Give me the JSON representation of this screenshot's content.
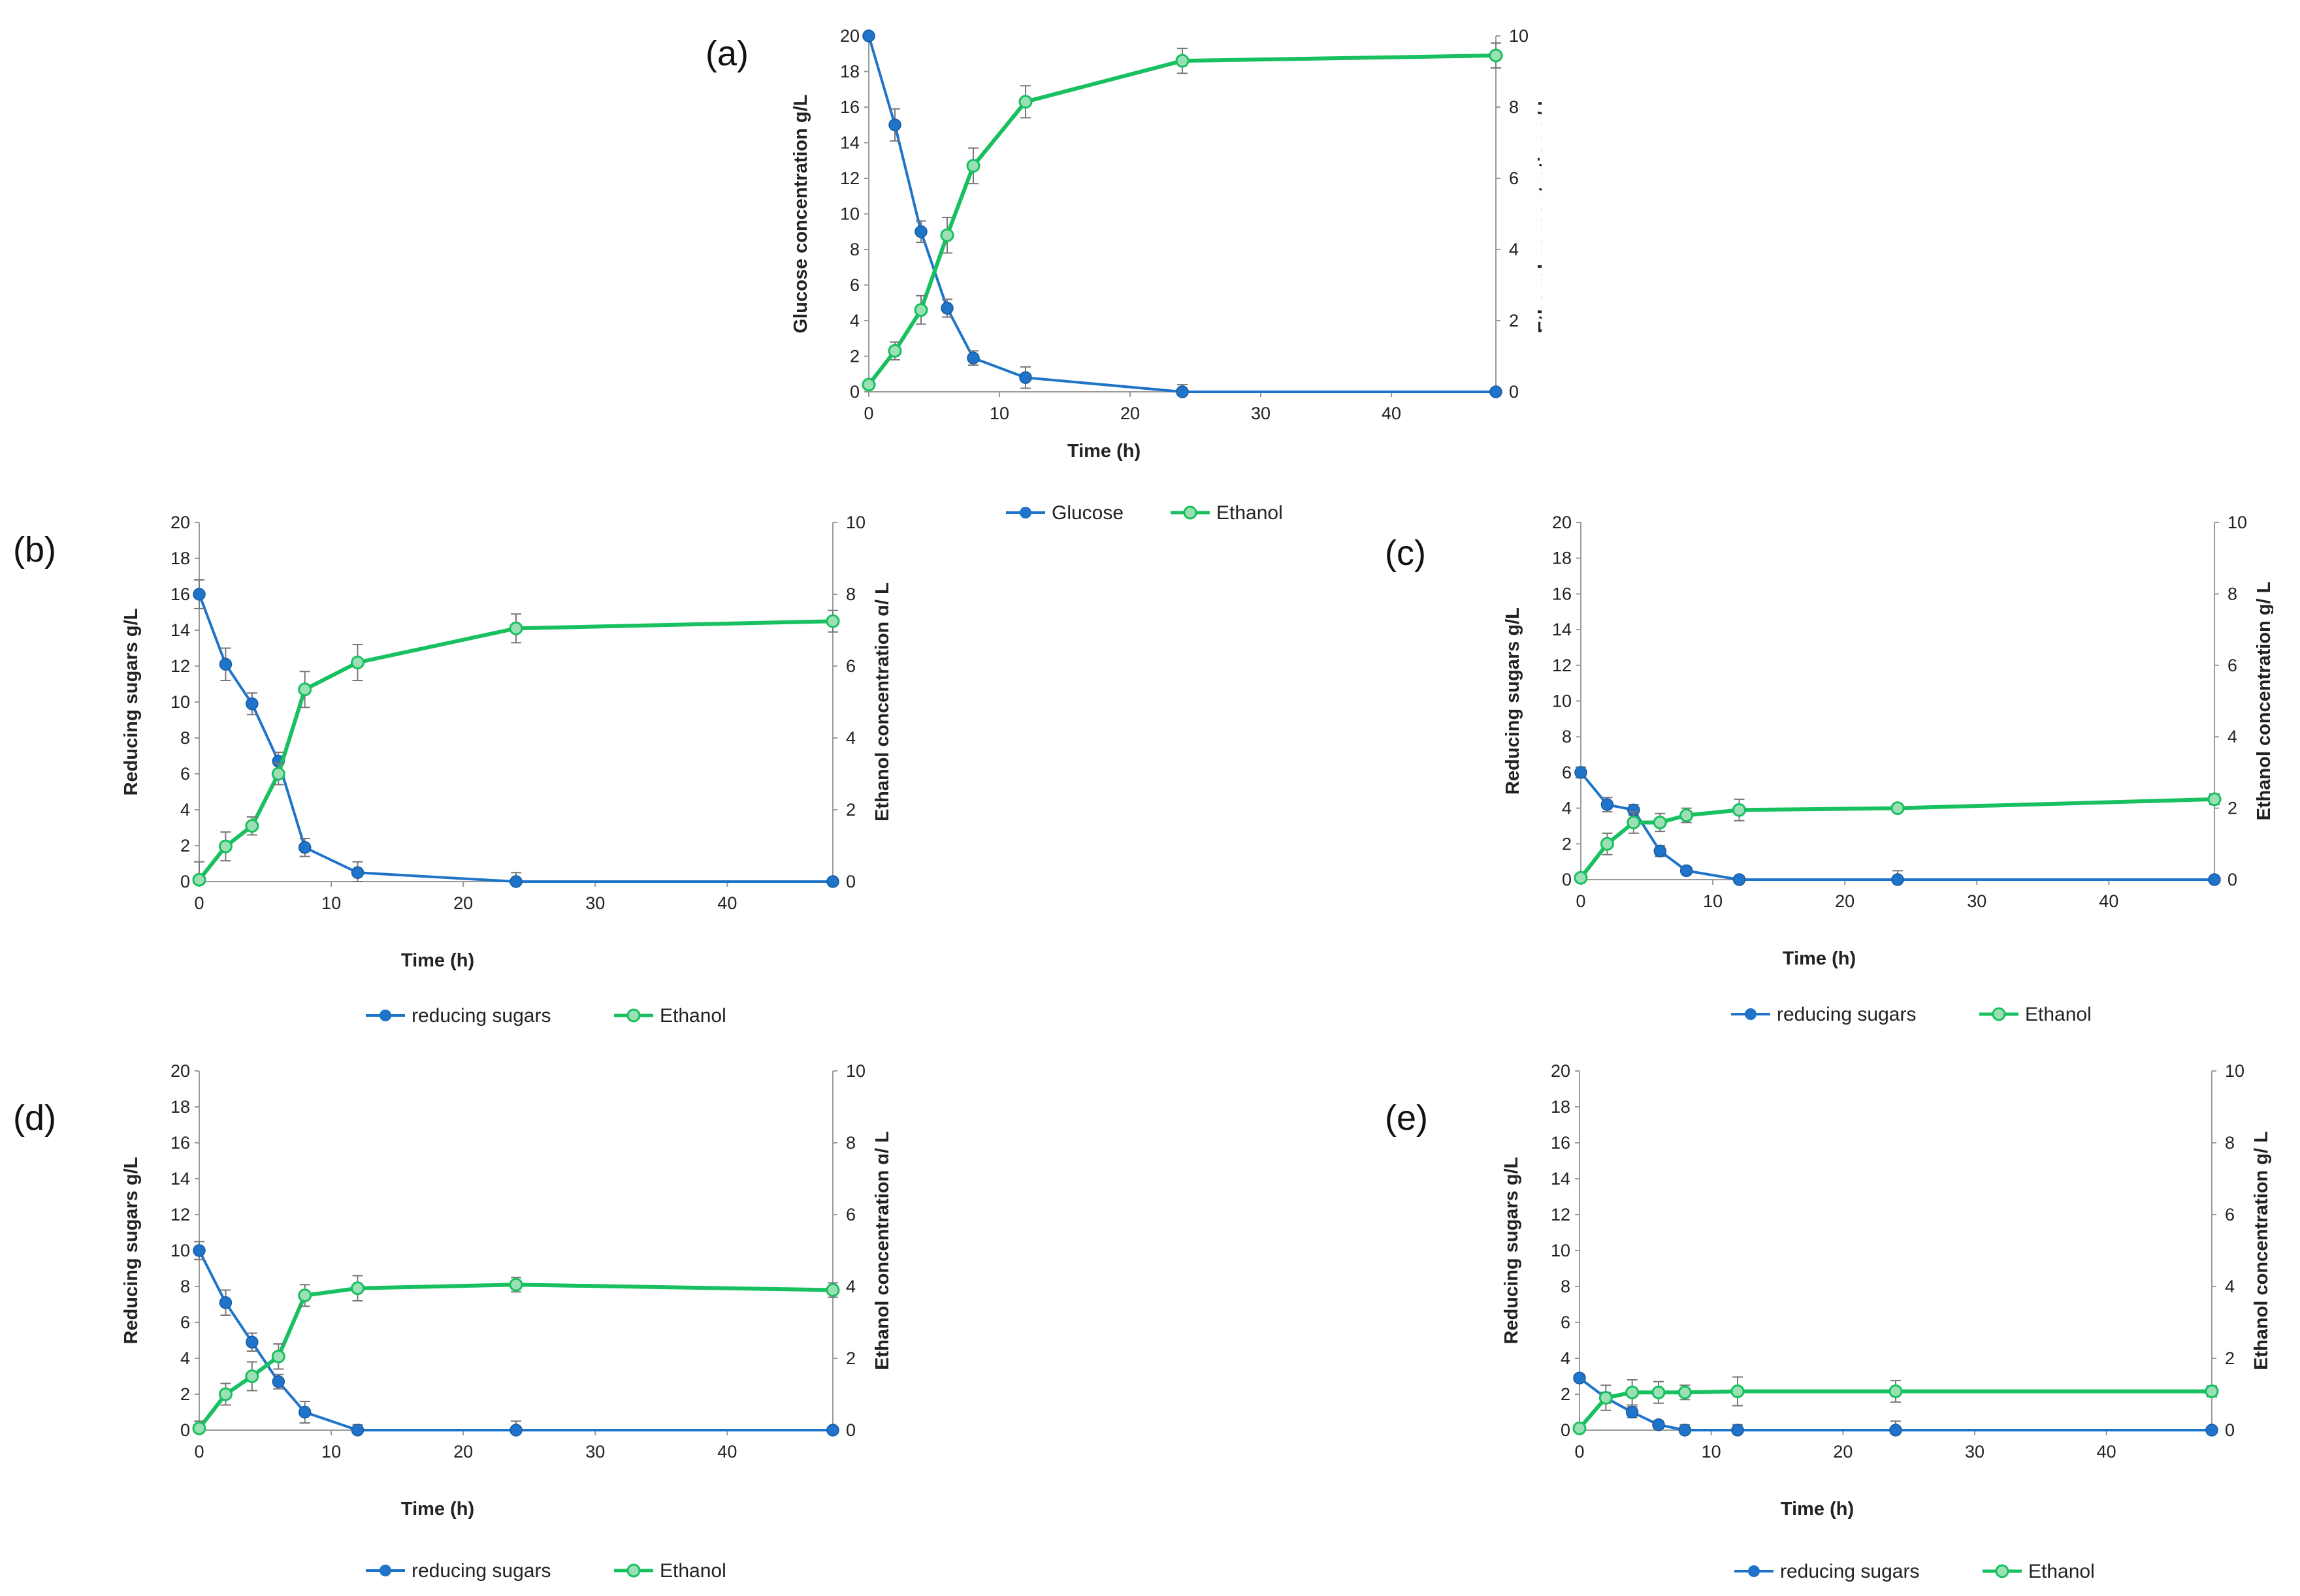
{
  "colors": {
    "sugar": "#1f74c9",
    "ethanol": "#18c060",
    "ethanol_fill": "#9be0b4",
    "error": "#777777",
    "axis": "#9a9a9a"
  },
  "chart_data": [
    {
      "type": "line",
      "panel": "(a)",
      "title": "",
      "xlabel": "Time (h)",
      "ylabel_left": "Glucose concentration g/L",
      "ylabel_right": "Ethanol concentration g/ L",
      "xlim": [
        0,
        48
      ],
      "xticks": [
        0,
        10,
        20,
        30,
        40
      ],
      "ylim_left": [
        0,
        20
      ],
      "yticks_left": [
        0,
        2,
        4,
        6,
        8,
        10,
        12,
        14,
        16,
        18,
        20
      ],
      "ylim_right": [
        0,
        10
      ],
      "yticks_right": [
        0,
        2,
        4,
        6,
        8,
        10
      ],
      "x": [
        0,
        2,
        4,
        6,
        8,
        12,
        24,
        48
      ],
      "series": [
        {
          "name": "Glucose",
          "axis": "left",
          "values": [
            20.0,
            15.0,
            9.0,
            4.7,
            1.9,
            0.8,
            0.0,
            0.0
          ],
          "errors": [
            0.0,
            0.9,
            0.6,
            0.5,
            0.4,
            0.6,
            0.4,
            0.0
          ]
        },
        {
          "name": "Ethanol",
          "axis": "right",
          "values": [
            0.2,
            1.15,
            2.3,
            4.4,
            6.35,
            8.15,
            9.3,
            9.45
          ],
          "errors": [
            0.1,
            0.25,
            0.4,
            0.5,
            0.5,
            0.45,
            0.35,
            0.35
          ]
        }
      ]
    },
    {
      "type": "line",
      "panel": "(b)",
      "title": "",
      "xlabel": "Time (h)",
      "ylabel_left": "Reducing sugars  g/L",
      "ylabel_right": "Ethanol concentration g/ L",
      "xlim": [
        0,
        48
      ],
      "xticks": [
        0,
        10,
        20,
        30,
        40
      ],
      "ylim_left": [
        0,
        20
      ],
      "yticks_left": [
        0,
        2,
        4,
        6,
        8,
        10,
        12,
        14,
        16,
        18,
        20
      ],
      "ylim_right": [
        0,
        10
      ],
      "yticks_right": [
        0,
        2,
        4,
        6,
        8,
        10
      ],
      "x": [
        0,
        2,
        4,
        6,
        8,
        12,
        24,
        48
      ],
      "series": [
        {
          "name": "reducing sugars",
          "axis": "left",
          "values": [
            16.0,
            12.1,
            9.9,
            6.7,
            1.9,
            0.5,
            0.0,
            0.0
          ],
          "errors": [
            0.8,
            0.9,
            0.6,
            0.5,
            0.5,
            0.6,
            0.5,
            0.0
          ]
        },
        {
          "name": "Ethanol",
          "axis": "right",
          "values": [
            0.05,
            0.98,
            1.55,
            3.0,
            5.35,
            6.1,
            7.05,
            7.25
          ],
          "errors": [
            0.5,
            0.4,
            0.25,
            0.3,
            0.5,
            0.5,
            0.4,
            0.3
          ]
        }
      ]
    },
    {
      "type": "line",
      "panel": "(c)",
      "title": "",
      "xlabel": "Time (h)",
      "ylabel_left": "Reducing sugars  g/L",
      "ylabel_right": "Ethanol concentration g/ L",
      "xlim": [
        0,
        48
      ],
      "xticks": [
        0,
        10,
        20,
        30,
        40
      ],
      "ylim_left": [
        0,
        20
      ],
      "yticks_left": [
        0,
        2,
        4,
        6,
        8,
        10,
        12,
        14,
        16,
        18,
        20
      ],
      "ylim_right": [
        0,
        10
      ],
      "yticks_right": [
        0,
        2,
        4,
        6,
        8,
        10
      ],
      "x": [
        0,
        2,
        4,
        6,
        8,
        12,
        24,
        48
      ],
      "series": [
        {
          "name": "reducing sugars",
          "axis": "left",
          "values": [
            6.0,
            4.2,
            3.9,
            1.6,
            0.5,
            0.0,
            0.0,
            0.0
          ],
          "errors": [
            0.3,
            0.4,
            0.3,
            0.3,
            0.2,
            0.2,
            0.5,
            0.0
          ]
        },
        {
          "name": "Ethanol",
          "axis": "right",
          "values": [
            0.05,
            1.0,
            1.6,
            1.6,
            1.8,
            1.95,
            2.0,
            2.25
          ],
          "errors": [
            0.1,
            0.3,
            0.3,
            0.25,
            0.2,
            0.3,
            0.1,
            0.15
          ]
        }
      ]
    },
    {
      "type": "line",
      "panel": "(d)",
      "title": "",
      "xlabel": "Time (h)",
      "ylabel_left": "Reducing sugars  g/L",
      "ylabel_right": "Ethanol concentration g/ L",
      "xlim": [
        0,
        48
      ],
      "xticks": [
        0,
        10,
        20,
        30,
        40
      ],
      "ylim_left": [
        0,
        20
      ],
      "yticks_left": [
        0,
        2,
        4,
        6,
        8,
        10,
        12,
        14,
        16,
        18,
        20
      ],
      "ylim_right": [
        0,
        10
      ],
      "yticks_right": [
        0,
        2,
        4,
        6,
        8,
        10
      ],
      "x": [
        0,
        2,
        4,
        6,
        8,
        12,
        24,
        48
      ],
      "series": [
        {
          "name": "reducing sugars",
          "axis": "left",
          "values": [
            10.0,
            7.1,
            4.9,
            2.7,
            1.0,
            0.0,
            0.0,
            0.0
          ],
          "errors": [
            0.5,
            0.7,
            0.5,
            0.4,
            0.6,
            0.3,
            0.5,
            0.0
          ]
        },
        {
          "name": "Ethanol",
          "axis": "right",
          "values": [
            0.05,
            1.0,
            1.5,
            2.05,
            3.75,
            3.95,
            4.05,
            3.9
          ],
          "errors": [
            0.2,
            0.3,
            0.4,
            0.35,
            0.3,
            0.35,
            0.2,
            0.2
          ]
        }
      ]
    },
    {
      "type": "line",
      "panel": "(e)",
      "title": "",
      "xlabel": "Time (h)",
      "ylabel_left": "Reducing sugars  g/L",
      "ylabel_right": "Ethanol concentration g/ L",
      "xlim": [
        0,
        48
      ],
      "xticks": [
        0,
        10,
        20,
        30,
        40
      ],
      "ylim_left": [
        0,
        20
      ],
      "yticks_left": [
        0,
        2,
        4,
        6,
        8,
        10,
        12,
        14,
        16,
        18,
        20
      ],
      "ylim_right": [
        0,
        10
      ],
      "yticks_right": [
        0,
        2,
        4,
        6,
        8,
        10
      ],
      "x": [
        0,
        2,
        4,
        6,
        8,
        12,
        24,
        48
      ],
      "series": [
        {
          "name": "reducing sugars",
          "axis": "left",
          "values": [
            2.9,
            1.8,
            1.0,
            0.3,
            0.0,
            0.0,
            0.0,
            0.0
          ],
          "errors": [
            0.2,
            0.3,
            0.3,
            0.2,
            0.3,
            0.3,
            0.5,
            0.0
          ]
        },
        {
          "name": "Ethanol",
          "axis": "right",
          "values": [
            0.05,
            0.9,
            1.05,
            1.05,
            1.05,
            1.08,
            1.08,
            1.08
          ],
          "errors": [
            0.1,
            0.35,
            0.35,
            0.3,
            0.2,
            0.4,
            0.3,
            0.15
          ]
        }
      ]
    }
  ]
}
